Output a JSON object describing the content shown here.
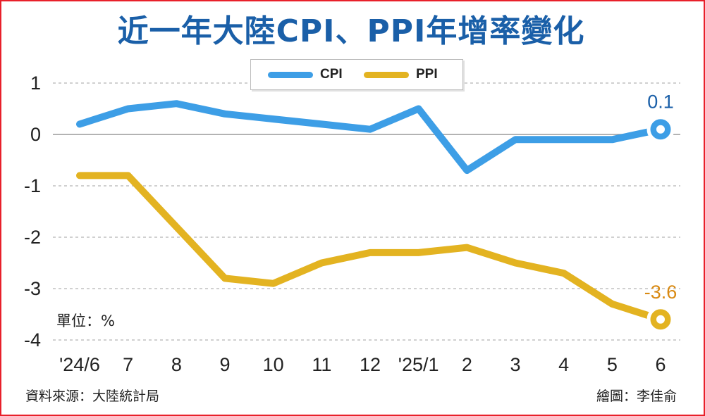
{
  "title": "近一年大陸CPI、PPI年增率變化",
  "unit_label": "單位：%",
  "source": "資料來源：大陸統計局",
  "credit": "繪圖：李佳俞",
  "chart_data": {
    "type": "line",
    "title": "近一年大陸CPI、PPI年增率變化",
    "categories": [
      "'24/6",
      "7",
      "8",
      "9",
      "10",
      "11",
      "12",
      "'25/1",
      "2",
      "3",
      "4",
      "5",
      "6"
    ],
    "yticks": [
      "1",
      "0",
      "-1",
      "-2",
      "-3",
      "-4"
    ],
    "ylim": [
      -4,
      1
    ],
    "grid": true,
    "legend_position": "top-center",
    "series": [
      {
        "name": "CPI",
        "color": "#3d9ee6",
        "values": [
          0.2,
          0.5,
          0.6,
          0.4,
          0.3,
          0.2,
          0.1,
          0.5,
          -0.7,
          -0.1,
          -0.1,
          -0.1,
          0.1
        ],
        "end_label": "0.1",
        "end_label_color": "#1a5fa8"
      },
      {
        "name": "PPI",
        "color": "#e3b321",
        "values": [
          -0.8,
          -0.8,
          -1.8,
          -2.8,
          -2.9,
          -2.5,
          -2.3,
          -2.3,
          -2.2,
          -2.5,
          -2.7,
          -3.3,
          -3.6
        ],
        "end_label": "-3.6",
        "end_label_color": "#d98a13"
      }
    ]
  }
}
